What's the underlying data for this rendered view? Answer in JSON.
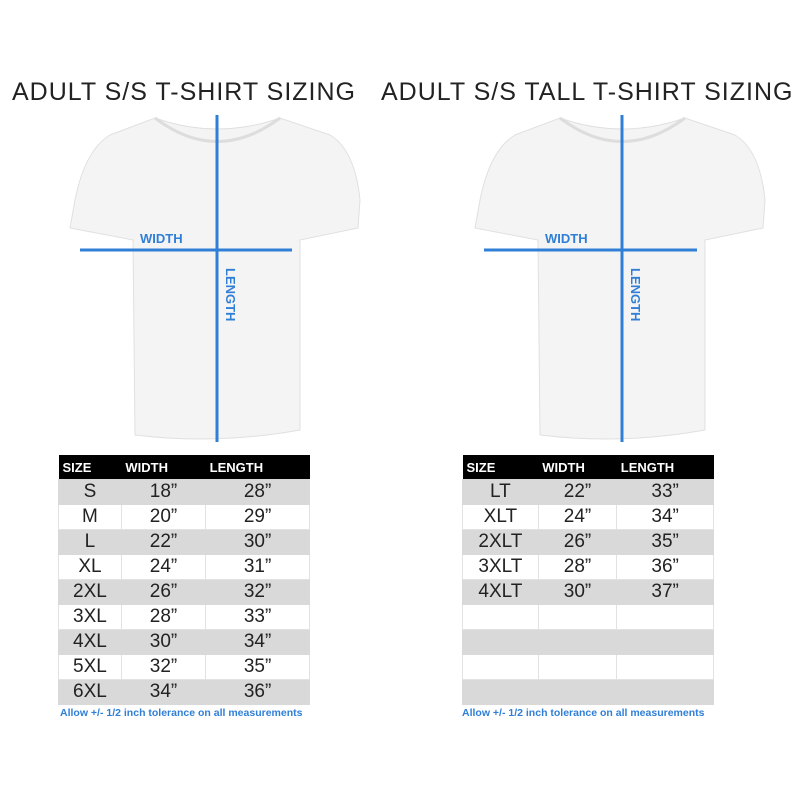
{
  "left": {
    "title": "ADULT S/S T-SHIRT SIZING",
    "width_label": "WIDTH",
    "length_label": "LENGTH",
    "headers": [
      "SIZE",
      "WIDTH",
      "LENGTH"
    ],
    "rows": [
      [
        "S",
        "18”",
        "28”"
      ],
      [
        "M",
        "20”",
        "29”"
      ],
      [
        "L",
        "22”",
        "30”"
      ],
      [
        "XL",
        "24”",
        "31”"
      ],
      [
        "2XL",
        "26”",
        "32”"
      ],
      [
        "3XL",
        "28”",
        "33”"
      ],
      [
        "4XL",
        "30”",
        "34”"
      ],
      [
        "5XL",
        "32”",
        "35”"
      ],
      [
        "6XL",
        "34”",
        "36”"
      ]
    ],
    "note": "Allow +/- 1/2 inch tolerance on all measurements"
  },
  "right": {
    "title": "ADULT S/S TALL T-SHIRT SIZING",
    "width_label": "WIDTH",
    "length_label": "LENGTH",
    "headers": [
      "SIZE",
      "WIDTH",
      "LENGTH"
    ],
    "rows": [
      [
        "LT",
        "22”",
        "33”"
      ],
      [
        "XLT",
        "24”",
        "34”"
      ],
      [
        "2XLT",
        "26”",
        "35”"
      ],
      [
        "3XLT",
        "28”",
        "36”"
      ],
      [
        "4XLT",
        "30”",
        "37”"
      ],
      [
        "",
        "",
        ""
      ],
      [
        "",
        "",
        ""
      ],
      [
        "",
        "",
        ""
      ],
      [
        "",
        "",
        ""
      ]
    ],
    "note": "Allow +/- 1/2 inch tolerance on all measurements"
  },
  "colors": {
    "measure_line": "#2f7fd6",
    "header_bg": "#000000",
    "stripe": "#d9d9d9"
  }
}
